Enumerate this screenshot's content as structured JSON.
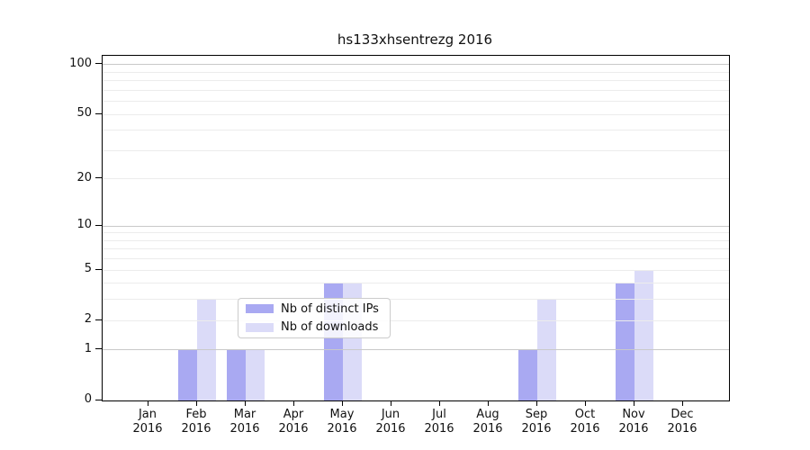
{
  "chart_data": {
    "type": "bar",
    "title": "hs133xhsentrezg 2016",
    "categories": [
      "Jan",
      "Feb",
      "Mar",
      "Apr",
      "May",
      "Jun",
      "Jul",
      "Aug",
      "Sep",
      "Oct",
      "Nov",
      "Dec"
    ],
    "x_year_label": "2016",
    "series": [
      {
        "name": "Nb of distinct IPs",
        "color": "#a9a9f2",
        "values": [
          0,
          1,
          1,
          0,
          4,
          0,
          0,
          0,
          1,
          0,
          4,
          0
        ]
      },
      {
        "name": "Nb of downloads",
        "color": "#dbdbf8",
        "values": [
          0,
          3,
          1,
          0,
          4,
          0,
          0,
          0,
          3,
          0,
          5,
          0
        ]
      }
    ],
    "yticks": [
      0,
      1,
      2,
      5,
      10,
      20,
      50,
      100
    ],
    "ylim": [
      0,
      113
    ],
    "yscale": "log1p",
    "grid": {
      "major_values": [
        1,
        10,
        100
      ],
      "minor_values": [
        2,
        3,
        4,
        5,
        6,
        7,
        8,
        9,
        20,
        30,
        40,
        50,
        60,
        70,
        80,
        90
      ],
      "major_color": "#c9c9c9",
      "minor_color": "#ececec"
    },
    "legend": {
      "entries": [
        "Nb of distinct IPs",
        "Nb of downloads"
      ],
      "position": "lower center"
    },
    "xlabel": "",
    "ylabel": ""
  }
}
